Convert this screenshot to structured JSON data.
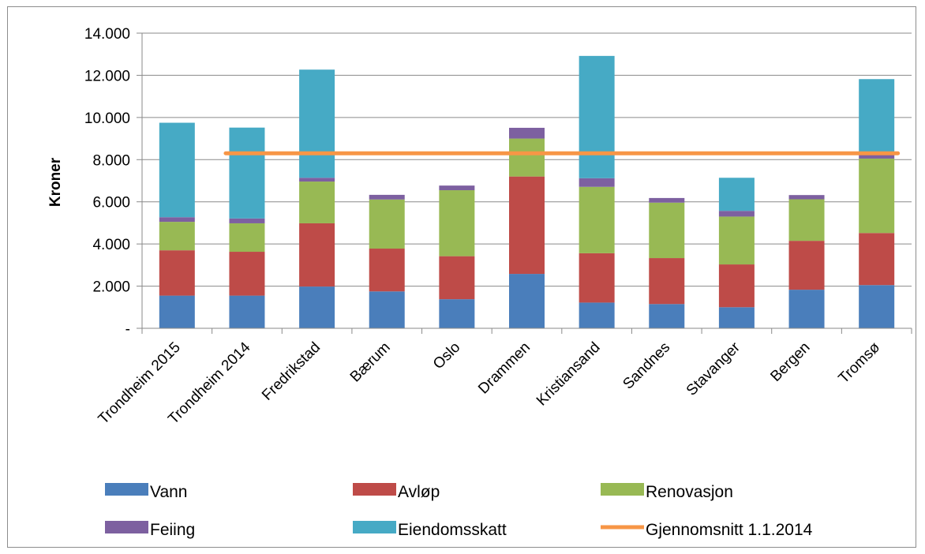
{
  "chart_data": {
    "type": "bar",
    "stacked": true,
    "ylabel": "Kroner",
    "ylim": [
      0,
      14000
    ],
    "yticks": [
      {
        "value": 0,
        "label": "-"
      },
      {
        "value": 2000,
        "label": "2.000"
      },
      {
        "value": 4000,
        "label": "4.000"
      },
      {
        "value": 6000,
        "label": "6.000"
      },
      {
        "value": 8000,
        "label": "8.000"
      },
      {
        "value": 10000,
        "label": "10.000"
      },
      {
        "value": 12000,
        "label": "12.000"
      },
      {
        "value": 14000,
        "label": "14.000"
      }
    ],
    "categories": [
      "Trondheim 2015",
      "Trondheim 2014",
      "Fredrikstad",
      "Bærum",
      "Oslo",
      "Drammen",
      "Kristiansand",
      "Sandnes",
      "Stavanger",
      "Bergen",
      "Tromsø"
    ],
    "series": [
      {
        "name": "Vann",
        "color": "#4a7ebb",
        "values": [
          1550,
          1550,
          1980,
          1750,
          1380,
          2580,
          1220,
          1150,
          1000,
          1830,
          2050
        ]
      },
      {
        "name": "Avløp",
        "color": "#be4b48",
        "values": [
          2150,
          2080,
          3000,
          2030,
          2040,
          4620,
          2340,
          2180,
          2030,
          2320,
          2470
        ]
      },
      {
        "name": "Renovasjon",
        "color": "#98b954",
        "values": [
          1350,
          1350,
          1980,
          2330,
          3130,
          1800,
          3150,
          2630,
          2270,
          1970,
          3530
        ]
      },
      {
        "name": "Feiing",
        "color": "#7d60a0",
        "values": [
          220,
          230,
          180,
          220,
          220,
          510,
          410,
          220,
          270,
          200,
          250
        ]
      },
      {
        "name": "Eiendomsskatt",
        "color": "#46aac5",
        "values": [
          4480,
          4310,
          5130,
          0,
          0,
          0,
          5800,
          0,
          1570,
          0,
          3520
        ]
      }
    ],
    "lines": [
      {
        "name": "Gjennomsnitt 1.1.2014",
        "color": "#f79646",
        "value": 8300,
        "from_category": 1,
        "to_category": 10
      }
    ],
    "legend_position": "bottom",
    "grid": "horizontal"
  }
}
